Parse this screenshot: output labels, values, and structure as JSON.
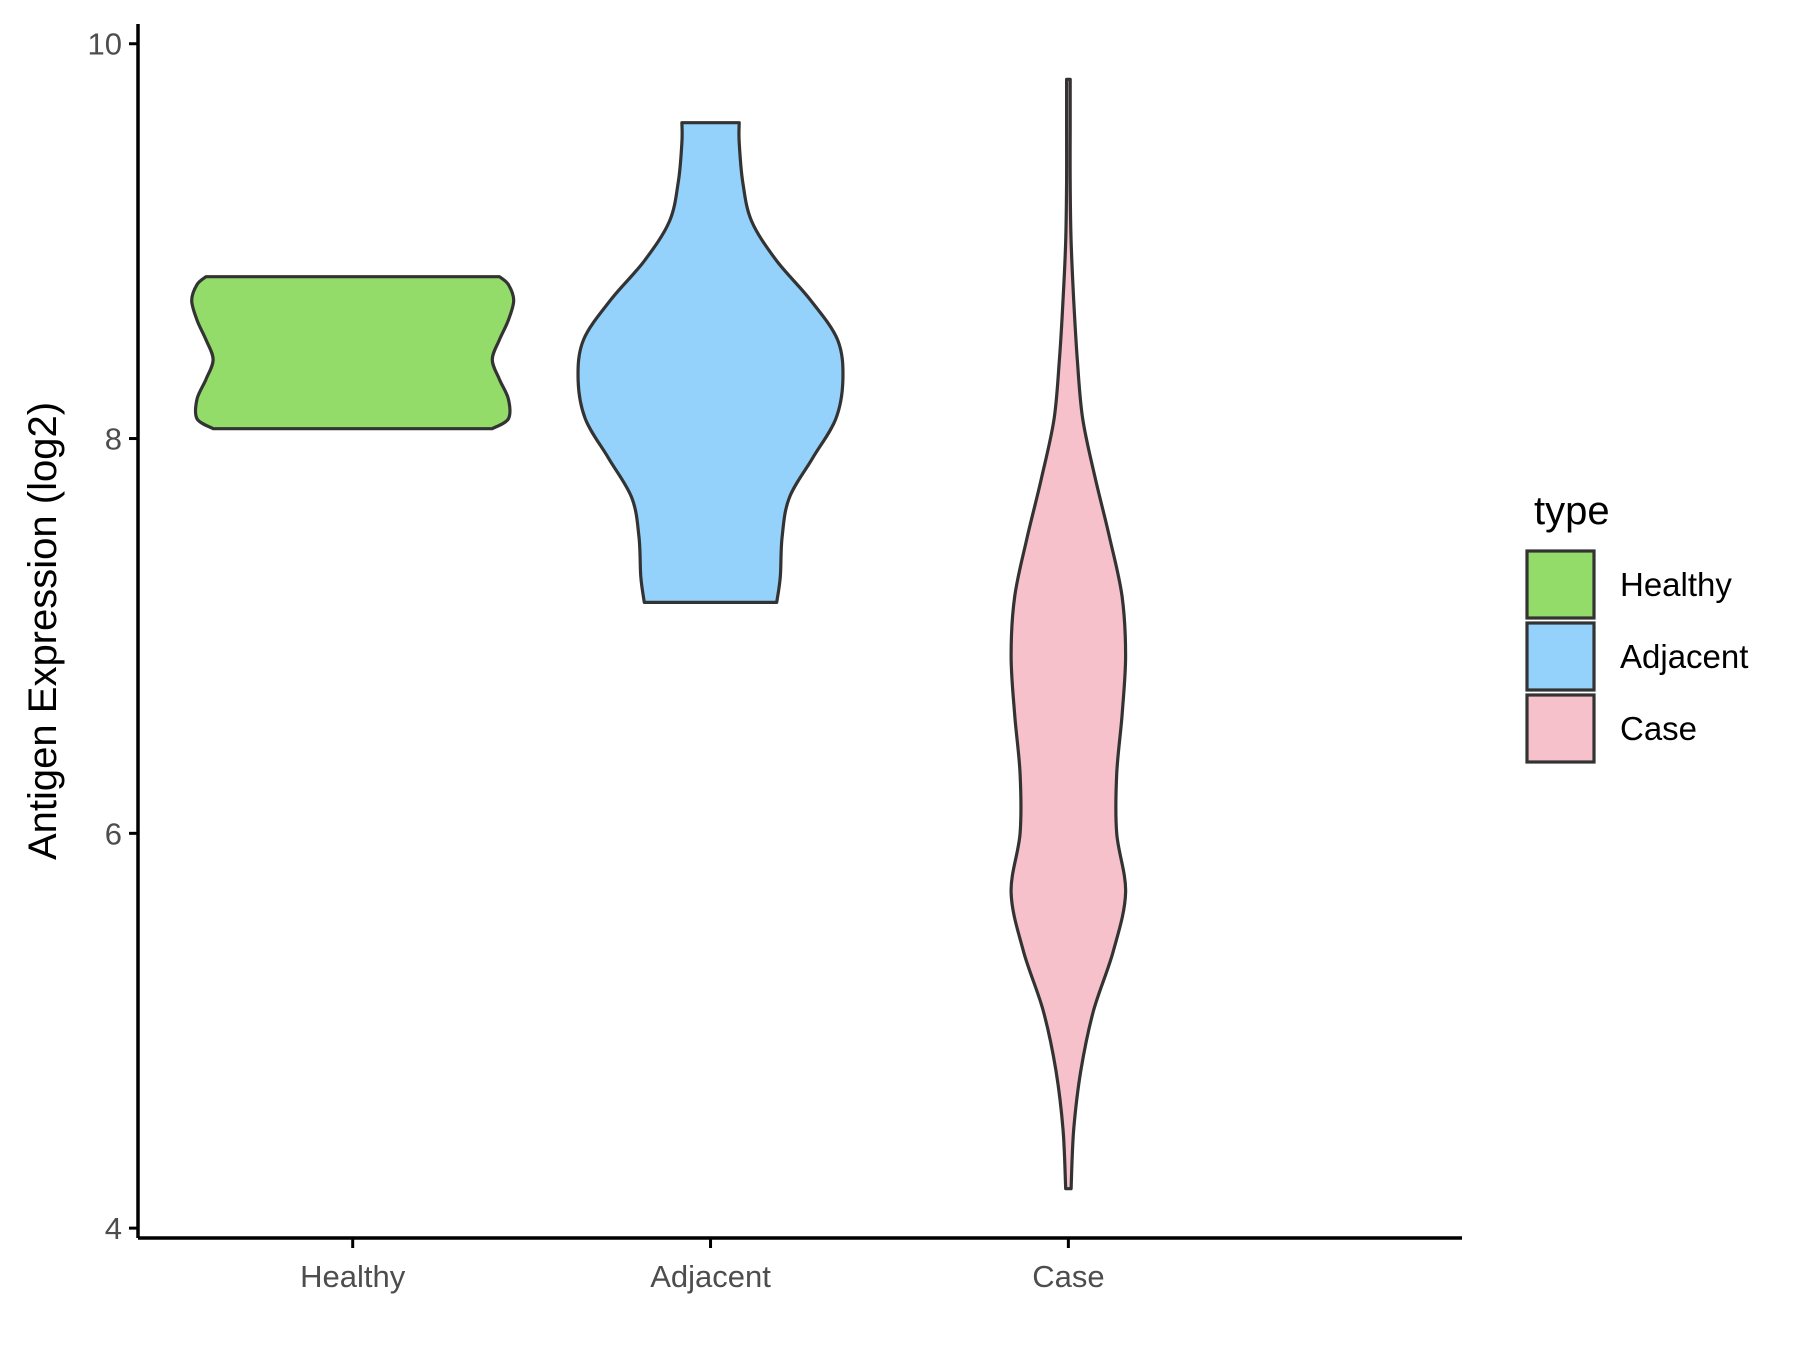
{
  "chart_data": {
    "type": "violin",
    "ylabel": "Antigen Expression (log2)",
    "xlabel": "",
    "ylim": [
      3.95,
      10.1
    ],
    "yticks": [
      4,
      6,
      8,
      10
    ],
    "categories": [
      "Healthy",
      "Adjacent",
      "Case"
    ],
    "grid": false,
    "legend": {
      "title": "type",
      "placement": "right",
      "entries": [
        "Healthy",
        "Adjacent",
        "Case"
      ]
    },
    "series": [
      {
        "category": "Healthy",
        "color": "#93dc6a",
        "min": 8.05,
        "max": 8.82,
        "profile": [
          [
            8.05,
            0.78
          ],
          [
            8.1,
            0.87
          ],
          [
            8.2,
            0.87
          ],
          [
            8.3,
            0.82
          ],
          [
            8.4,
            0.78
          ],
          [
            8.5,
            0.82
          ],
          [
            8.6,
            0.87
          ],
          [
            8.7,
            0.9
          ],
          [
            8.78,
            0.87
          ],
          [
            8.82,
            0.82
          ]
        ]
      },
      {
        "category": "Adjacent",
        "color": "#94d2fc",
        "min": 7.17,
        "max": 9.6,
        "profile": [
          [
            7.17,
            0.37
          ],
          [
            7.3,
            0.39
          ],
          [
            7.5,
            0.4
          ],
          [
            7.7,
            0.44
          ],
          [
            7.9,
            0.57
          ],
          [
            8.1,
            0.7
          ],
          [
            8.3,
            0.74
          ],
          [
            8.5,
            0.71
          ],
          [
            8.7,
            0.56
          ],
          [
            8.9,
            0.37
          ],
          [
            9.1,
            0.23
          ],
          [
            9.3,
            0.18
          ],
          [
            9.5,
            0.16
          ],
          [
            9.6,
            0.16
          ]
        ]
      },
      {
        "category": "Case",
        "color": "#f7c1cb",
        "min": 4.2,
        "max": 9.82,
        "profile": [
          [
            4.2,
            0.015
          ],
          [
            4.5,
            0.03
          ],
          [
            4.8,
            0.07
          ],
          [
            5.1,
            0.14
          ],
          [
            5.4,
            0.25
          ],
          [
            5.7,
            0.32
          ],
          [
            6.0,
            0.27
          ],
          [
            6.3,
            0.27
          ],
          [
            6.6,
            0.3
          ],
          [
            6.9,
            0.32
          ],
          [
            7.2,
            0.3
          ],
          [
            7.5,
            0.23
          ],
          [
            7.8,
            0.15
          ],
          [
            8.1,
            0.08
          ],
          [
            8.4,
            0.05
          ],
          [
            8.7,
            0.03
          ],
          [
            9.0,
            0.015
          ],
          [
            9.3,
            0.01
          ],
          [
            9.6,
            0.01
          ],
          [
            9.82,
            0.01
          ]
        ]
      }
    ]
  }
}
